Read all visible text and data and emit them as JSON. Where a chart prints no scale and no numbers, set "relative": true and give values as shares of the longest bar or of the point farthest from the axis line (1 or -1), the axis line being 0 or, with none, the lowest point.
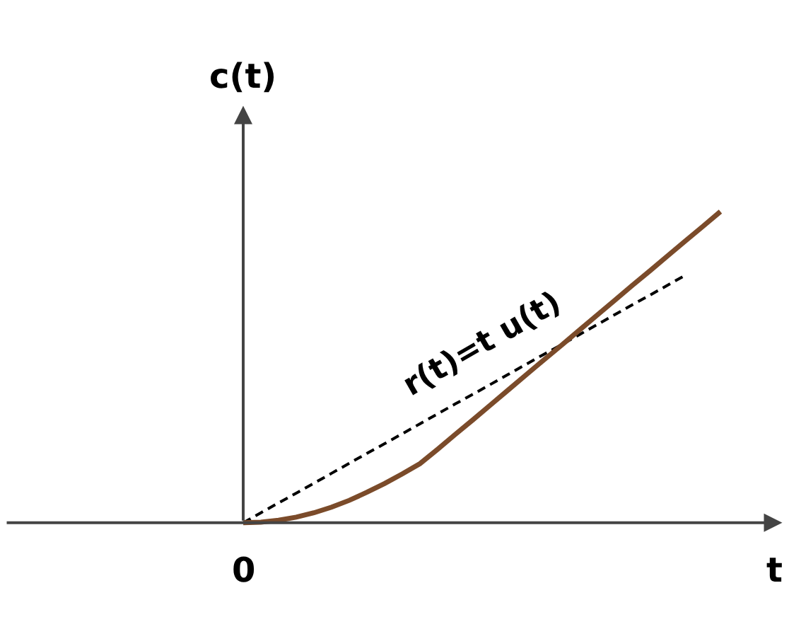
{
  "chart_data": {
    "type": "line",
    "relative": true,
    "xlabel": "t",
    "ylabel": "c(t)",
    "legend": false,
    "marker": "none",
    "annotations": [
      "0"
    ],
    "categories": [
      null,
      null,
      null,
      null,
      null,
      null,
      null,
      null,
      null,
      null,
      null,
      null,
      null,
      null,
      null,
      null,
      null,
      null,
      null,
      null,
      null,
      null,
      null,
      null,
      null,
      null,
      null,
      null
    ],
    "series": [
      {
        "name": "r(t)=t u(t)",
        "color": "#000000",
        "line_style": "dashed",
        "values": [
          0,
          0.032,
          0.064,
          0.095,
          0.127,
          0.159,
          0.191,
          0.223,
          0.254,
          0.286,
          0.318,
          0.35,
          0.382,
          0.413,
          0.445,
          0.477,
          0.509,
          0.541,
          0.572,
          0.604,
          0.636,
          0.668,
          0.7,
          0.731,
          0.763,
          0.795,
          null,
          null
        ]
      },
      {
        "color": "#7b4b2a",
        "line_style": "solid",
        "values": [
          0,
          0.002,
          0.008,
          0.018,
          0.032,
          0.05,
          0.072,
          0.098,
          0.126,
          0.157,
          0.19,
          0.236,
          0.284,
          0.331,
          0.379,
          0.427,
          0.475,
          0.523,
          0.57,
          0.618,
          0.666,
          0.714,
          0.762,
          0.809,
          0.857,
          0.905,
          0.952,
          1
        ]
      }
    ]
  }
}
